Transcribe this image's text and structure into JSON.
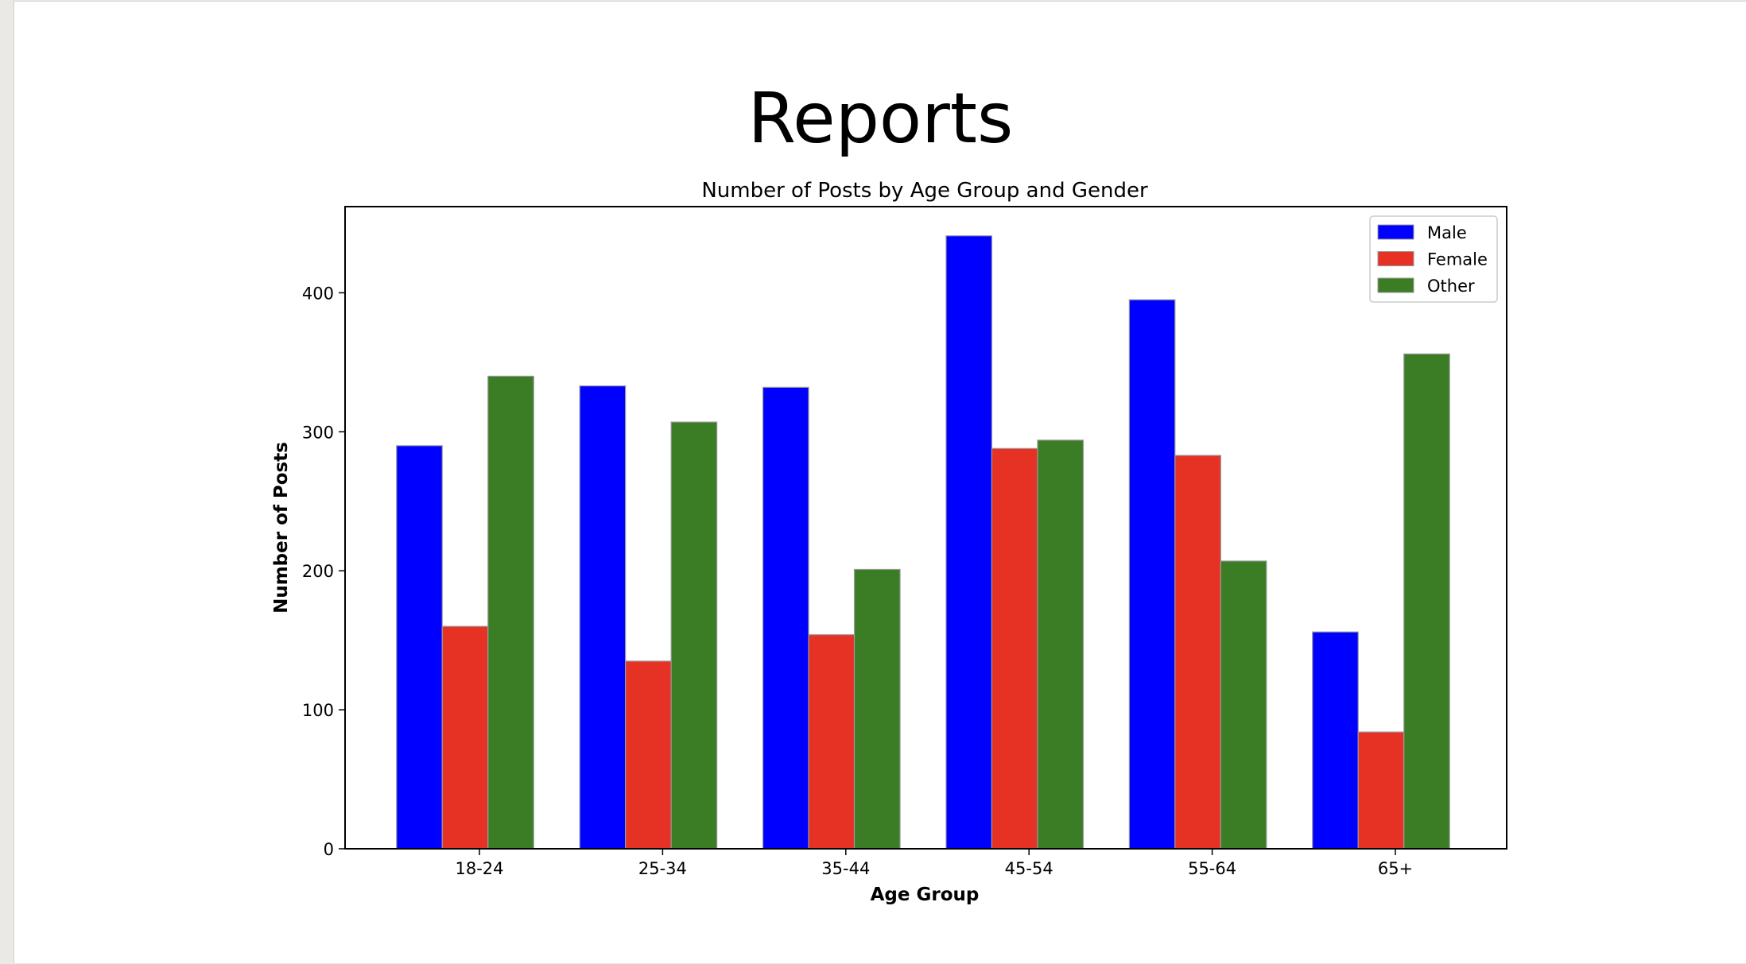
{
  "slide": {
    "title": "Reports"
  },
  "chart_data": {
    "type": "bar",
    "title": "Number of Posts by Age Group and Gender",
    "xlabel": "Age Group",
    "ylabel": "Number of Posts",
    "categories": [
      "18-24",
      "25-34",
      "35-44",
      "45-54",
      "55-64",
      "65+"
    ],
    "series": [
      {
        "name": "Male",
        "color": "#0000ff",
        "values": [
          290,
          333,
          332,
          441,
          395,
          156
        ]
      },
      {
        "name": "Female",
        "color": "#e63125",
        "values": [
          160,
          135,
          154,
          288,
          283,
          84
        ]
      },
      {
        "name": "Other",
        "color": "#3a7d24",
        "values": [
          340,
          307,
          201,
          294,
          207,
          356
        ]
      }
    ],
    "ylim": [
      0,
      462
    ],
    "yticks": [
      0,
      100,
      200,
      300,
      400
    ],
    "grid": false,
    "legend_position": "top-right"
  }
}
